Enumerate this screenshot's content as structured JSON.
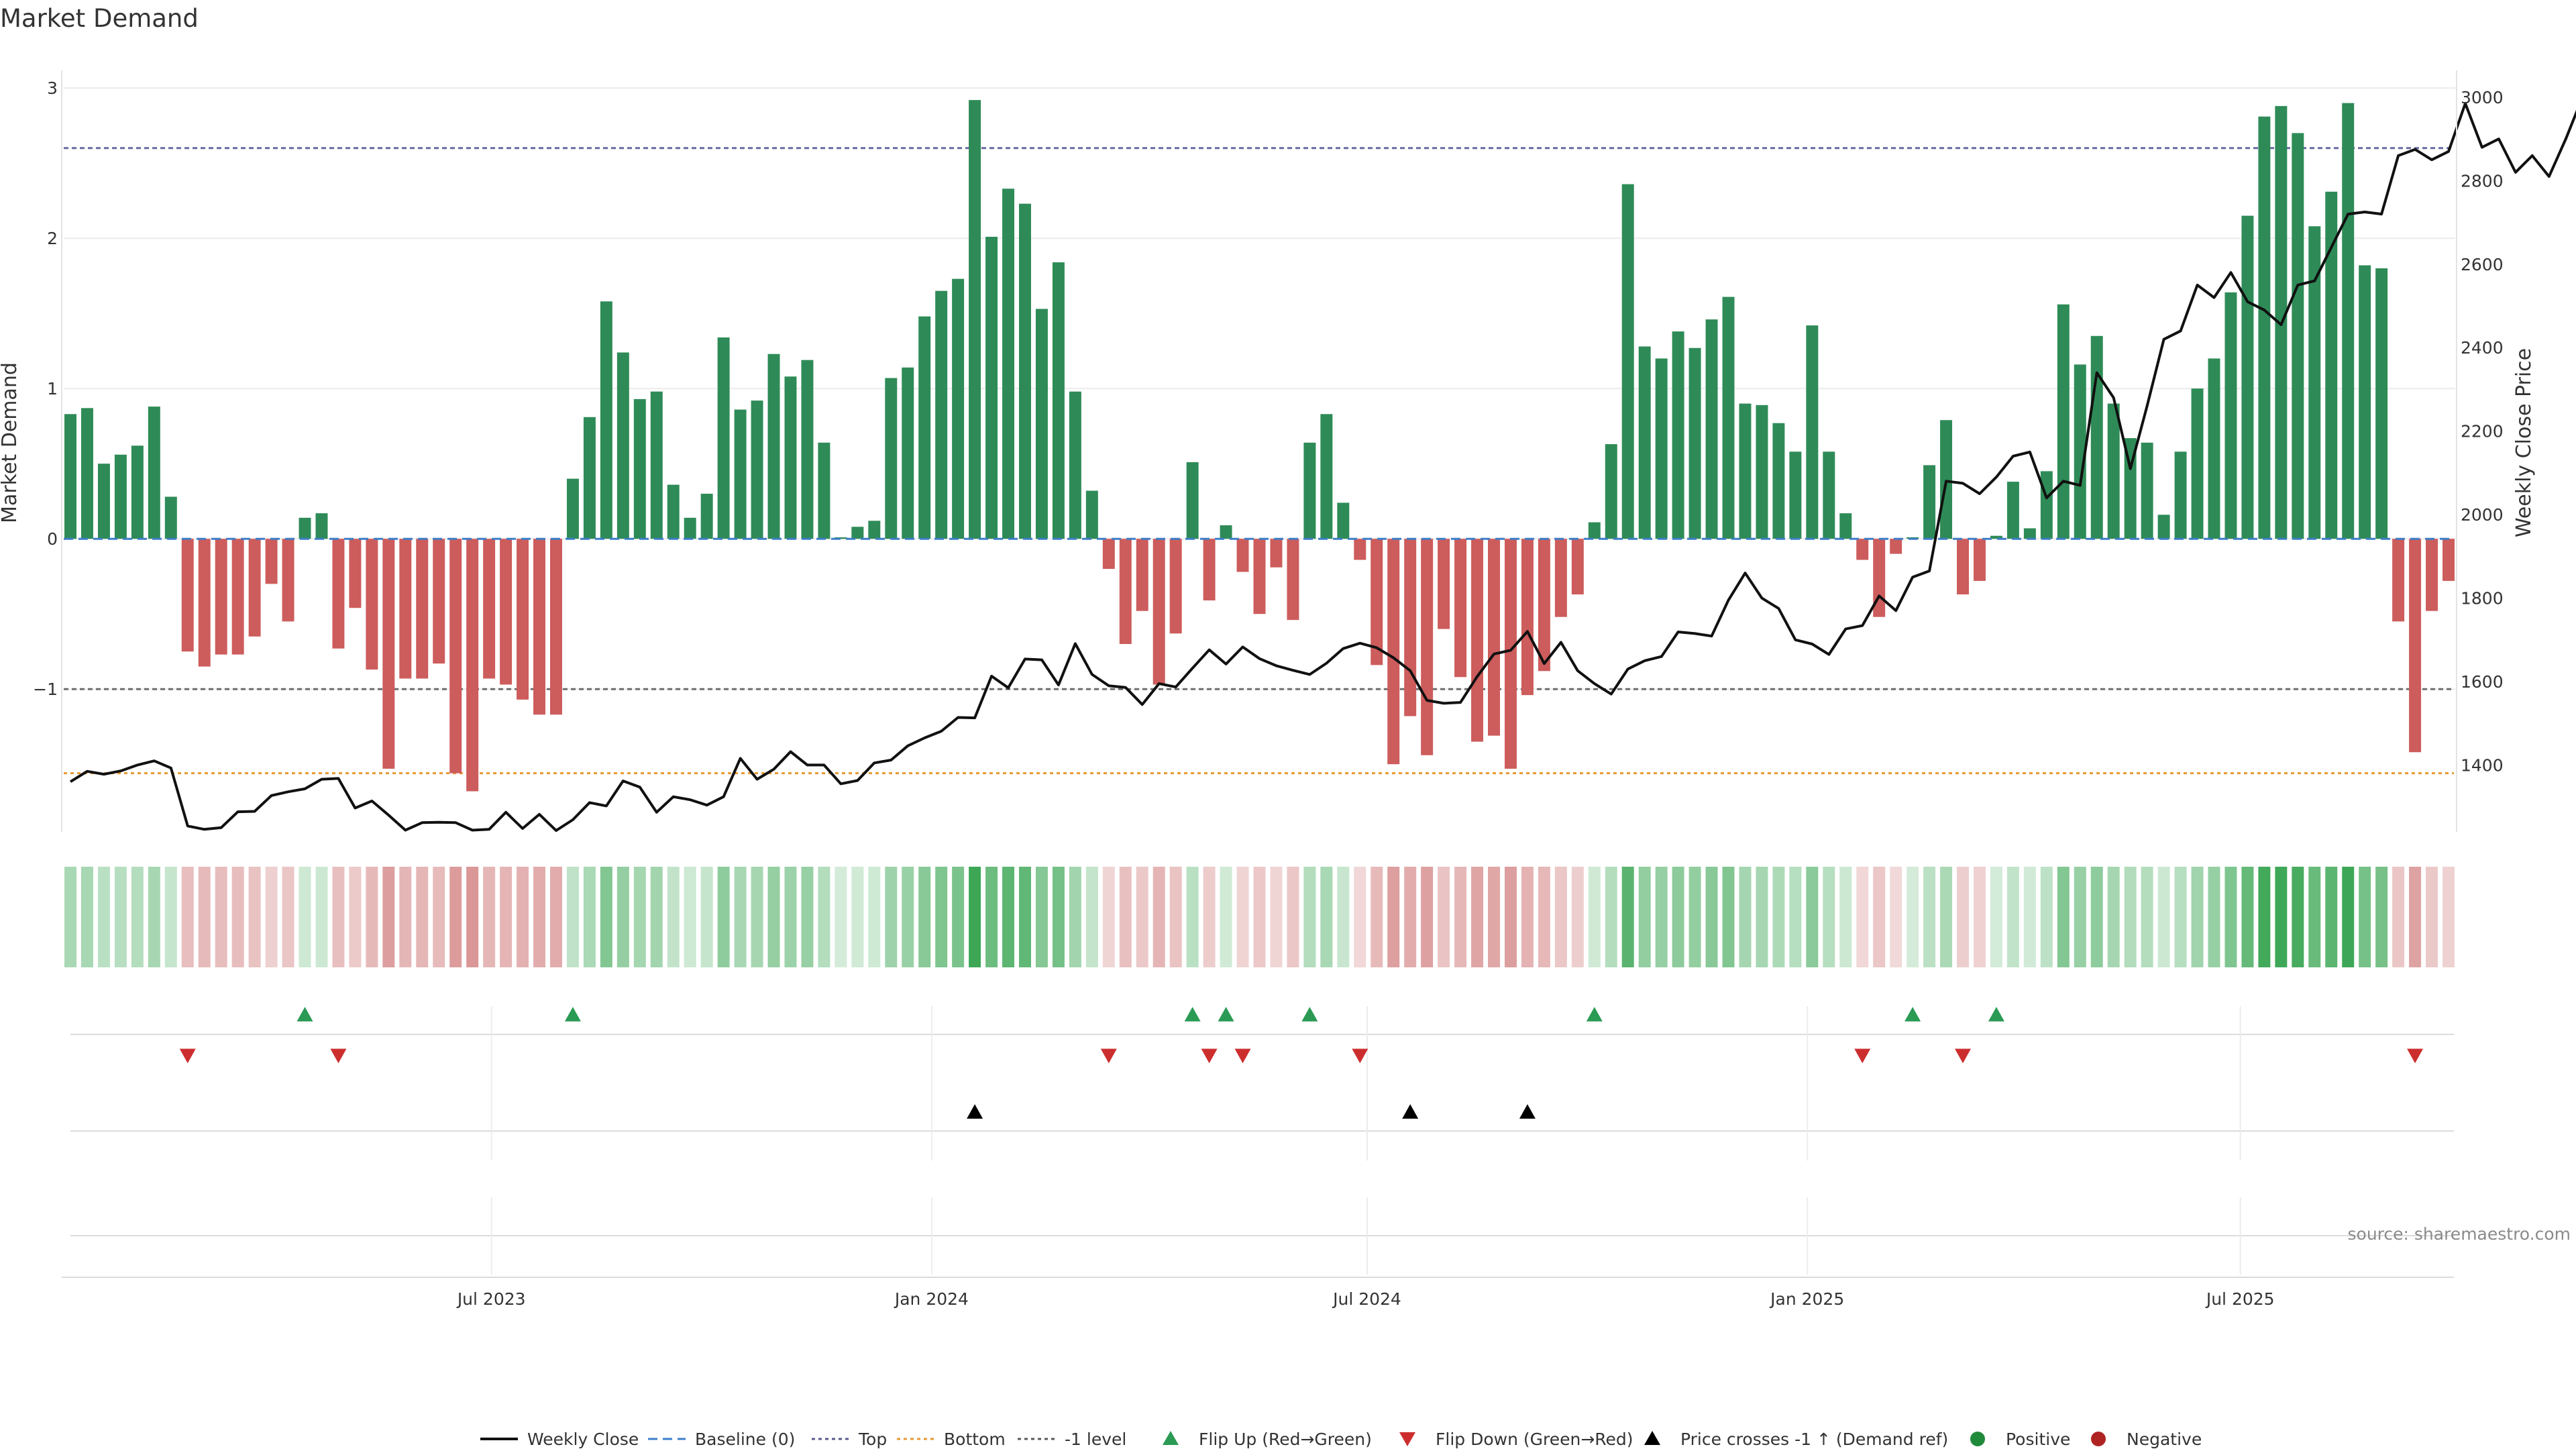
{
  "chart_data": {
    "type": "bar",
    "title": "Market Demand",
    "ylabel_left": "Market Demand",
    "ylabel_right": "Weekly Close Price",
    "ylim_left": [
      -1.95,
      3.05
    ],
    "ylim_right": [
      1240,
      3040
    ],
    "yticks_left": [
      -1,
      0,
      1,
      2,
      3
    ],
    "ytick_labels_left": [
      "−1",
      "0",
      "1",
      "2",
      "3"
    ],
    "yticks_right": [
      1400,
      1600,
      1800,
      2000,
      2200,
      2400,
      2600,
      2800,
      3000
    ],
    "ytick_labels_right": [
      "1400",
      "1600",
      "1800",
      "2000",
      "2200",
      "2400",
      "2600",
      "2800",
      "3000"
    ],
    "x_start": "2023-01-06",
    "x_interval_days": 7,
    "x_ticks": [
      {
        "date": "2023-07-01",
        "label": "Jul 2023"
      },
      {
        "date": "2024-01-01",
        "label": "Jan 2024"
      },
      {
        "date": "2024-07-01",
        "label": "Jul 2024"
      },
      {
        "date": "2025-01-01",
        "label": "Jan 2025"
      },
      {
        "date": "2025-07-01",
        "label": "Jul 2025"
      }
    ],
    "reference_lines": {
      "top": 2.6,
      "bottom": -1.56,
      "minus_one": -1,
      "baseline": 0
    },
    "demand": [
      0.83,
      0.87,
      0.5,
      0.56,
      0.62,
      0.88,
      0.28,
      -0.75,
      -0.85,
      -0.77,
      -0.77,
      -0.65,
      -0.3,
      -0.55,
      0.14,
      0.17,
      -0.73,
      -0.46,
      -0.87,
      -1.53,
      -0.93,
      -0.93,
      -0.83,
      -1.56,
      -1.68,
      -0.93,
      -0.97,
      -1.07,
      -1.17,
      -1.17,
      0.4,
      0.81,
      1.58,
      1.24,
      0.93,
      0.98,
      0.36,
      0.14,
      0.3,
      1.34,
      0.86,
      0.92,
      1.23,
      1.08,
      1.19,
      0.64,
      0.01,
      0.08,
      0.12,
      1.07,
      1.14,
      1.48,
      1.65,
      1.73,
      2.92,
      2.01,
      2.33,
      2.23,
      1.53,
      1.84,
      0.98,
      0.32,
      -0.2,
      -0.7,
      -0.48,
      -0.97,
      -0.63,
      0.51,
      -0.41,
      0.09,
      -0.22,
      -0.5,
      -0.19,
      -0.54,
      0.64,
      0.83,
      0.24,
      -0.14,
      -0.84,
      -1.5,
      -1.18,
      -1.44,
      -0.6,
      -0.92,
      -1.35,
      -1.31,
      -1.53,
      -1.04,
      -0.88,
      -0.52,
      -0.37,
      0.11,
      0.63,
      2.36,
      1.28,
      1.2,
      1.38,
      1.27,
      1.46,
      1.61,
      0.9,
      0.89,
      0.77,
      0.58,
      1.42,
      0.58,
      0.17,
      -0.14,
      -0.52,
      -0.1,
      0.01,
      0.49,
      0.79,
      -0.37,
      -0.28,
      0.02,
      0.38,
      0.07,
      0.45,
      1.56,
      1.16,
      1.35,
      0.9,
      0.67,
      0.64,
      0.16,
      0.58,
      1.0,
      1.2,
      1.64,
      2.15,
      2.81,
      2.88,
      2.7,
      2.08,
      2.31,
      2.9,
      1.82,
      1.8,
      -0.55,
      -1.42,
      -0.48,
      -0.28
    ],
    "weekly_close": [
      1360,
      1385,
      1378,
      1386,
      1400,
      1410,
      1393,
      1254,
      1246,
      1250,
      1288,
      1289,
      1327,
      1336,
      1343,
      1366,
      1368,
      1297,
      1314,
      1280,
      1244,
      1262,
      1263,
      1262,
      1244,
      1246,
      1287,
      1248,
      1282,
      1243,
      1269,
      1310,
      1302,
      1362,
      1347,
      1287,
      1324,
      1317,
      1304,
      1324,
      1416,
      1366,
      1390,
      1432,
      1400,
      1400,
      1355,
      1363,
      1405,
      1412,
      1446,
      1465,
      1481,
      1514,
      1513,
      1613,
      1585,
      1654,
      1652,
      1592,
      1691,
      1617,
      1590,
      1586,
      1545,
      1595,
      1587,
      1632,
      1676,
      1642,
      1683,
      1655,
      1638,
      1627,
      1617,
      1644,
      1679,
      1692,
      1681,
      1657,
      1626,
      1555,
      1548,
      1550,
      1612,
      1666,
      1675,
      1720,
      1643,
      1694,
      1626,
      1595,
      1570,
      1630,
      1650,
      1660,
      1719,
      1715,
      1709,
      1795,
      1860,
      1800,
      1775,
      1700,
      1690,
      1665,
      1726,
      1734,
      1805,
      1770,
      1850,
      1865,
      2080,
      2075,
      2050,
      2090,
      2140,
      2150,
      2040,
      2080,
      2070,
      2340,
      2280,
      2110,
      2260,
      2420,
      2440,
      2550,
      2520,
      2580,
      2510,
      2490,
      2455,
      2550,
      2560,
      2640,
      2720,
      2725,
      2720,
      2860,
      2875,
      2850,
      2870,
      2985,
      2880,
      2900,
      2820,
      2860,
      2810,
      2900,
      3000
    ],
    "flip_up_idx": [
      14,
      30,
      67,
      69,
      74,
      91,
      110,
      115
    ],
    "flip_down_idx": [
      7,
      16,
      62,
      68,
      70,
      77,
      107,
      113,
      140
    ],
    "cross_idx": [
      54,
      80,
      87
    ],
    "legend": [
      {
        "label": "Weekly Close",
        "marker": "line",
        "color": "#111111"
      },
      {
        "label": "Baseline (0)",
        "marker": "dashed",
        "color": "#3d7ec8"
      },
      {
        "label": "Top",
        "marker": "dotted",
        "color": "#5a5a8c"
      },
      {
        "label": "Bottom",
        "marker": "dotted",
        "color": "#e69a32"
      },
      {
        "label": "-1 level",
        "marker": "dotted",
        "color": "#5a5a5a"
      },
      {
        "label": "Flip Up (Red→Green)",
        "marker": "triangle-up",
        "color": "#2a9a54"
      },
      {
        "label": "Flip Down (Green→Red)",
        "marker": "triangle-down",
        "color": "#cc2e2e"
      },
      {
        "label": "Price crosses -1 ↑ (Demand ref)",
        "marker": "triangle-up",
        "color": "#000000"
      },
      {
        "label": "Positive",
        "marker": "circle",
        "color": "#1f8a3a"
      },
      {
        "label": "Negative",
        "marker": "circle",
        "color": "#b02323"
      }
    ],
    "annotation": "source: sharemaestro.com",
    "colors": {
      "positive_bar": "#2e8b57",
      "negative_bar": "#cd5c5c",
      "price_line": "#111111",
      "heat_positive": "#3da756",
      "heat_negative": "#c86464"
    }
  }
}
